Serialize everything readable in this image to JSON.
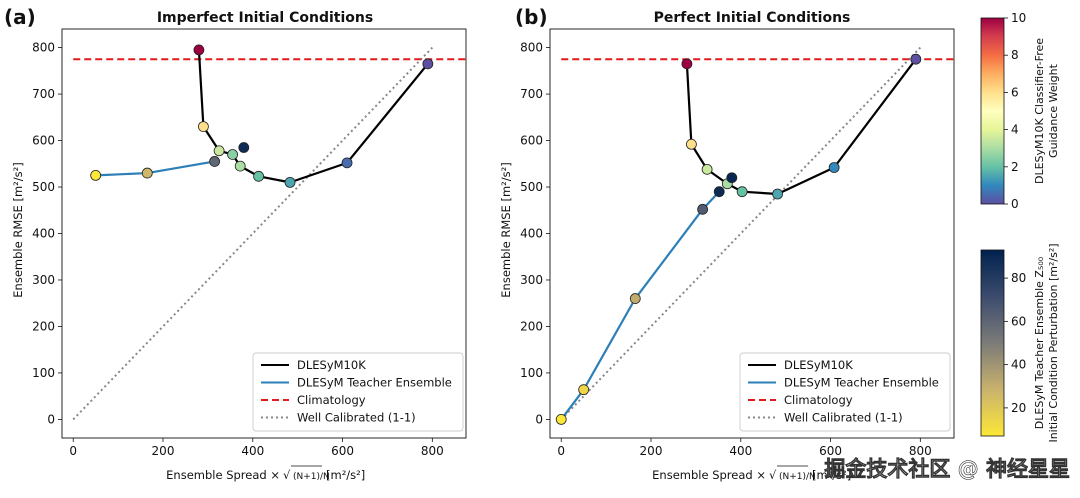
{
  "panels": [
    {
      "letter": "(a)",
      "title": "Imperfect Initial Conditions",
      "xlabel_main": "Ensemble Spread ×",
      "xlabel_units": "[m²/s²]",
      "ylabel": "Ensemble RMSE [m²/s²]",
      "legend": [
        "DLESyM10K",
        "DLESyM Teacher Ensemble",
        "Climatology",
        "Well Calibrated (1-1)"
      ]
    },
    {
      "letter": "(b)",
      "title": "Perfect Initial Conditions",
      "xlabel_main": "Ensemble Spread ×",
      "xlabel_units": "[m²/s²]",
      "ylabel": "Ensemble RMSE [m²/s²]",
      "legend": [
        "DLESyM10K",
        "DLESyM Teacher Ensemble",
        "Climatology",
        "Well Calibrated (1-1)"
      ]
    }
  ],
  "xlabel_sqrt": "(N+1)/N",
  "colorbars": [
    {
      "label_line1": "DLESyM10K Classifier-Free",
      "label_line2": "Guidance Weight",
      "ticks": [
        "0",
        "2",
        "4",
        "6",
        "8",
        "10"
      ]
    },
    {
      "label_line1": "DLESyM Teacher Ensemble Z₅₀₀",
      "label_line2": "Initial Condition Perturbation [m²/s²]",
      "ticks": [
        "20",
        "40",
        "60",
        "80"
      ]
    }
  ],
  "watermark": "掘金技术社区 @ 神经星星",
  "chart_data": [
    {
      "type": "line",
      "title": "Imperfect Initial Conditions",
      "xlim": [
        -25,
        875
      ],
      "ylim": [
        -40,
        840
      ],
      "xticks": [
        0,
        200,
        400,
        600,
        800
      ],
      "yticks": [
        0,
        100,
        200,
        300,
        400,
        500,
        600,
        700,
        800
      ],
      "climatology": 775,
      "one_to_one": [
        [
          0,
          0
        ],
        [
          800,
          800
        ]
      ],
      "series": [
        {
          "name": "DLESyM10K",
          "color": "#000000",
          "colormap": "Spectral_r",
          "x": [
            280,
            290,
            325,
            355,
            372,
            413,
            483,
            610,
            790
          ],
          "y": [
            795,
            630,
            578,
            570,
            545,
            523,
            510,
            552,
            765
          ],
          "c": [
            10,
            6,
            3.5,
            2.5,
            3,
            2,
            1.5,
            0.5,
            0
          ]
        },
        {
          "name": "DLESyM Teacher Ensemble",
          "color": "#2d7fb8",
          "colormap": "cividis_r",
          "x": [
            50,
            165,
            315
          ],
          "y": [
            525,
            530,
            555
          ],
          "c": [
            5,
            25,
            60
          ]
        }
      ],
      "extra_points": [
        {
          "x": 380,
          "y": 585,
          "c": 90
        }
      ]
    },
    {
      "type": "line",
      "title": "Perfect Initial Conditions",
      "xlim": [
        -25,
        875
      ],
      "ylim": [
        -40,
        840
      ],
      "xticks": [
        0,
        200,
        400,
        600,
        800
      ],
      "yticks": [
        0,
        100,
        200,
        300,
        400,
        500,
        600,
        700,
        800
      ],
      "climatology": 775,
      "one_to_one": [
        [
          0,
          0
        ],
        [
          800,
          800
        ]
      ],
      "series": [
        {
          "name": "DLESyM10K",
          "color": "#000000",
          "colormap": "Spectral_r",
          "x": [
            280,
            290,
            325,
            370,
            403,
            482,
            608,
            790
          ],
          "y": [
            765,
            592,
            538,
            507,
            490,
            485,
            542,
            775
          ],
          "c": [
            10,
            6,
            3.5,
            3,
            2,
            1.5,
            1,
            0
          ]
        },
        {
          "name": "DLESyM Teacher Ensemble",
          "color": "#2d7fb8",
          "colormap": "cividis_r",
          "x": [
            0,
            50,
            165,
            315,
            352
          ],
          "y": [
            0,
            64,
            260,
            452,
            490
          ],
          "c": [
            5,
            12,
            30,
            65,
            90
          ]
        }
      ],
      "extra_points": [
        {
          "x": 380,
          "y": 520,
          "c": 92
        }
      ]
    }
  ]
}
